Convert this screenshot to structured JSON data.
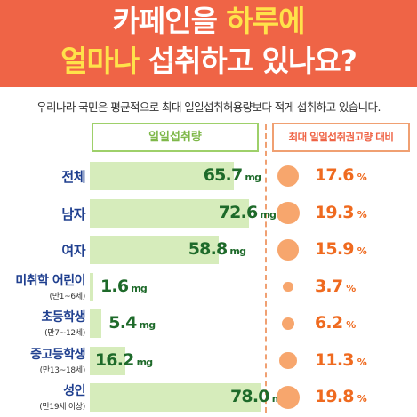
{
  "header": {
    "line1_part1": "카페인을 ",
    "line1_highlight": "하루에",
    "line2_highlight": "얼마나",
    "line2_part2": " 섭취하고 있나요?"
  },
  "subtitle": "우리나라 국민은 평균적으로 최대 일일섭취허용량보다 적게 섭취하고 있습니다.",
  "columns": {
    "left": "일일섭취량",
    "right": "최대 일일섭취권고량 대비"
  },
  "colors": {
    "banner": "#ef6446",
    "highlight": "#ffe24a",
    "bar": "#d6ecbb",
    "bar_value": "#1e6a2a",
    "circle": "#f7a66d",
    "percent": "#ef6a1f",
    "label": "#1f3f8f"
  },
  "chart_data": {
    "type": "bar",
    "categories": [
      "전체",
      "남자",
      "여자",
      "미취학 어린이",
      "초등학생",
      "중고등학생",
      "성인"
    ],
    "category_sublabels": [
      "",
      "",
      "",
      "(만1~6세)",
      "(만7~12세)",
      "(만13~18세)",
      "(만19세 이상)"
    ],
    "series": [
      {
        "name": "일일섭취량",
        "unit": "mg",
        "values": [
          65.7,
          72.6,
          58.8,
          1.6,
          5.4,
          16.2,
          78.0
        ],
        "labels": [
          "65.7",
          "72.6",
          "58.8",
          "1.6",
          "5.4",
          "16.2",
          "78.0"
        ]
      },
      {
        "name": "최대 일일섭취권고량 대비",
        "unit": "%",
        "values": [
          17.6,
          19.3,
          15.9,
          3.7,
          6.2,
          11.3,
          19.8
        ],
        "labels": [
          "17.6",
          "19.3",
          "15.9",
          "3.7",
          "6.2",
          "11.3",
          "19.8"
        ]
      }
    ],
    "xlim": [
      0,
      78.0
    ]
  }
}
